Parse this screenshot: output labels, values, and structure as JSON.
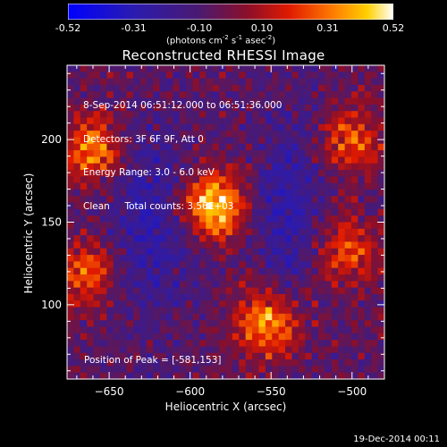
{
  "colorbar": {
    "tick_labels": [
      "-0.52",
      "-0.31",
      "-0.10",
      "0.10",
      "0.31",
      "0.52"
    ],
    "units_prefix": "(photons cm",
    "units_exp1": "-2",
    "units_mid": " s",
    "units_exp2": "-1",
    "units_mid2": " asec",
    "units_exp3": "-2",
    "units_suffix": ")"
  },
  "title": "Reconstructed RHESSI Image",
  "info": {
    "time_range": "8-Sep-2014 06:51:12.000 to 06:51:36.000",
    "detectors": "Detectors: 3F 6F 9F, Att 0",
    "energy": "Energy Range: 3.0 - 6.0 keV",
    "method": "Clean     Total counts: 3.56E+03"
  },
  "peak_label": "Position of Peak = [-581,153]",
  "footer_date": "19-Dec-2014 00:11",
  "chart_data": {
    "type": "heatmap",
    "title": "Reconstructed RHESSI Image",
    "xlabel": "Heliocentric X (arcsec)",
    "ylabel": "Heliocentric Y (arcsec)",
    "xlim": [
      -676,
      -480
    ],
    "ylim": [
      55,
      245
    ],
    "x_ticks": [
      -650,
      -600,
      -550,
      -500
    ],
    "y_ticks": [
      100,
      150,
      200
    ],
    "colorbar_range": [
      -0.52,
      0.52
    ],
    "colormap": "blue-purple-red-yellow-white",
    "peak_position": [
      -581,
      153
    ],
    "sources": [
      {
        "x": -586,
        "y": 160,
        "peak": 0.52
      },
      {
        "x": -552,
        "y": 89,
        "peak": 0.45
      },
      {
        "x": -660,
        "y": 194,
        "peak": 0.38
      },
      {
        "x": -664,
        "y": 119,
        "peak": 0.34
      },
      {
        "x": -500,
        "y": 200,
        "peak": 0.28
      },
      {
        "x": -503,
        "y": 132,
        "peak": 0.3
      }
    ]
  }
}
